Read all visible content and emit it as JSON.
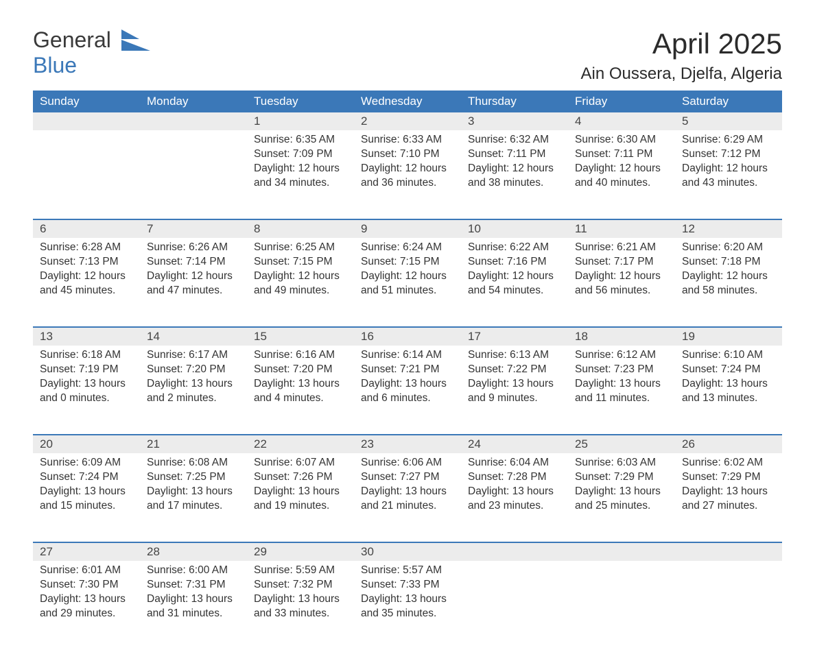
{
  "brand": {
    "word1": "General",
    "word2": "Blue"
  },
  "title": "April 2025",
  "location": "Ain Oussera, Djelfa, Algeria",
  "colors": {
    "header_bg": "#3b78b8",
    "header_text": "#ffffff",
    "daynum_bg": "#ececec",
    "row_border": "#3b78b8",
    "body_text": "#333333",
    "logo_blue": "#3b78b8",
    "page_bg": "#ffffff"
  },
  "typography": {
    "title_fontsize": 42,
    "location_fontsize": 24,
    "dayheader_fontsize": 17,
    "daynum_fontsize": 17,
    "cell_fontsize": 15.5
  },
  "layout": {
    "columns": 7,
    "rows": 5
  },
  "day_headers": [
    "Sunday",
    "Monday",
    "Tuesday",
    "Wednesday",
    "Thursday",
    "Friday",
    "Saturday"
  ],
  "weeks": [
    [
      null,
      null,
      {
        "n": "1",
        "sunrise": "6:35 AM",
        "sunset": "7:09 PM",
        "day_h": 12,
        "day_m": 34
      },
      {
        "n": "2",
        "sunrise": "6:33 AM",
        "sunset": "7:10 PM",
        "day_h": 12,
        "day_m": 36
      },
      {
        "n": "3",
        "sunrise": "6:32 AM",
        "sunset": "7:11 PM",
        "day_h": 12,
        "day_m": 38
      },
      {
        "n": "4",
        "sunrise": "6:30 AM",
        "sunset": "7:11 PM",
        "day_h": 12,
        "day_m": 40
      },
      {
        "n": "5",
        "sunrise": "6:29 AM",
        "sunset": "7:12 PM",
        "day_h": 12,
        "day_m": 43
      }
    ],
    [
      {
        "n": "6",
        "sunrise": "6:28 AM",
        "sunset": "7:13 PM",
        "day_h": 12,
        "day_m": 45
      },
      {
        "n": "7",
        "sunrise": "6:26 AM",
        "sunset": "7:14 PM",
        "day_h": 12,
        "day_m": 47
      },
      {
        "n": "8",
        "sunrise": "6:25 AM",
        "sunset": "7:15 PM",
        "day_h": 12,
        "day_m": 49
      },
      {
        "n": "9",
        "sunrise": "6:24 AM",
        "sunset": "7:15 PM",
        "day_h": 12,
        "day_m": 51
      },
      {
        "n": "10",
        "sunrise": "6:22 AM",
        "sunset": "7:16 PM",
        "day_h": 12,
        "day_m": 54
      },
      {
        "n": "11",
        "sunrise": "6:21 AM",
        "sunset": "7:17 PM",
        "day_h": 12,
        "day_m": 56
      },
      {
        "n": "12",
        "sunrise": "6:20 AM",
        "sunset": "7:18 PM",
        "day_h": 12,
        "day_m": 58
      }
    ],
    [
      {
        "n": "13",
        "sunrise": "6:18 AM",
        "sunset": "7:19 PM",
        "day_h": 13,
        "day_m": 0
      },
      {
        "n": "14",
        "sunrise": "6:17 AM",
        "sunset": "7:20 PM",
        "day_h": 13,
        "day_m": 2
      },
      {
        "n": "15",
        "sunrise": "6:16 AM",
        "sunset": "7:20 PM",
        "day_h": 13,
        "day_m": 4
      },
      {
        "n": "16",
        "sunrise": "6:14 AM",
        "sunset": "7:21 PM",
        "day_h": 13,
        "day_m": 6
      },
      {
        "n": "17",
        "sunrise": "6:13 AM",
        "sunset": "7:22 PM",
        "day_h": 13,
        "day_m": 9
      },
      {
        "n": "18",
        "sunrise": "6:12 AM",
        "sunset": "7:23 PM",
        "day_h": 13,
        "day_m": 11
      },
      {
        "n": "19",
        "sunrise": "6:10 AM",
        "sunset": "7:24 PM",
        "day_h": 13,
        "day_m": 13
      }
    ],
    [
      {
        "n": "20",
        "sunrise": "6:09 AM",
        "sunset": "7:24 PM",
        "day_h": 13,
        "day_m": 15
      },
      {
        "n": "21",
        "sunrise": "6:08 AM",
        "sunset": "7:25 PM",
        "day_h": 13,
        "day_m": 17
      },
      {
        "n": "22",
        "sunrise": "6:07 AM",
        "sunset": "7:26 PM",
        "day_h": 13,
        "day_m": 19
      },
      {
        "n": "23",
        "sunrise": "6:06 AM",
        "sunset": "7:27 PM",
        "day_h": 13,
        "day_m": 21
      },
      {
        "n": "24",
        "sunrise": "6:04 AM",
        "sunset": "7:28 PM",
        "day_h": 13,
        "day_m": 23
      },
      {
        "n": "25",
        "sunrise": "6:03 AM",
        "sunset": "7:29 PM",
        "day_h": 13,
        "day_m": 25
      },
      {
        "n": "26",
        "sunrise": "6:02 AM",
        "sunset": "7:29 PM",
        "day_h": 13,
        "day_m": 27
      }
    ],
    [
      {
        "n": "27",
        "sunrise": "6:01 AM",
        "sunset": "7:30 PM",
        "day_h": 13,
        "day_m": 29
      },
      {
        "n": "28",
        "sunrise": "6:00 AM",
        "sunset": "7:31 PM",
        "day_h": 13,
        "day_m": 31
      },
      {
        "n": "29",
        "sunrise": "5:59 AM",
        "sunset": "7:32 PM",
        "day_h": 13,
        "day_m": 33
      },
      {
        "n": "30",
        "sunrise": "5:57 AM",
        "sunset": "7:33 PM",
        "day_h": 13,
        "day_m": 35
      },
      null,
      null,
      null
    ]
  ],
  "labels": {
    "sunrise_prefix": "Sunrise: ",
    "sunset_prefix": "Sunset: ",
    "daylight_prefix": "Daylight: ",
    "hours_word": " hours",
    "and_word": "and ",
    "minutes_word": " minutes."
  }
}
